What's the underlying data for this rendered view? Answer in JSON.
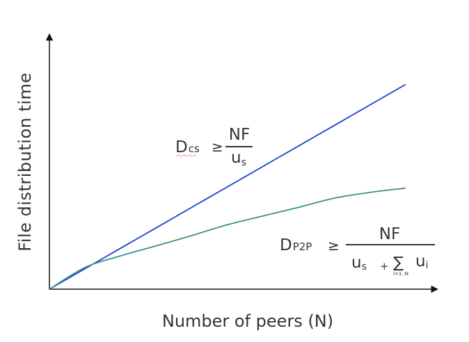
{
  "chart_data": {
    "type": "line",
    "xlabel": "Number of peers (N)",
    "ylabel": "File distribution time",
    "x": [
      0,
      1,
      2,
      3,
      4,
      5,
      6,
      7,
      8,
      9,
      10
    ],
    "series": [
      {
        "values": [
          0,
          10,
          20,
          30,
          40,
          50,
          60,
          70,
          80,
          90,
          100
        ],
        "color": "#1a3fd1"
      },
      {
        "values": [
          0,
          10.6,
          16.3,
          21.2,
          26.2,
          31.5,
          35.8,
          40.0,
          44.5,
          47.3,
          49.4
        ],
        "color": "#3a8f8a"
      }
    ],
    "annotations": {
      "client_server": {
        "lhs_main": "D",
        "lhs_sub": "cs",
        "relation": "≥",
        "numerator": "NF",
        "denominator_main": "u",
        "denominator_sub": "s"
      },
      "peer_to_peer": {
        "lhs_main": "D",
        "lhs_sub": "P2P",
        "relation": "≥",
        "numerator": "NF",
        "den_us_main": "u",
        "den_us_sub": "s",
        "den_plus": "+",
        "den_sum": "∑",
        "den_sum_index": "i=1..N",
        "den_ui_main": "u",
        "den_ui_sub": "i"
      }
    },
    "grid": false,
    "legend": "none"
  }
}
